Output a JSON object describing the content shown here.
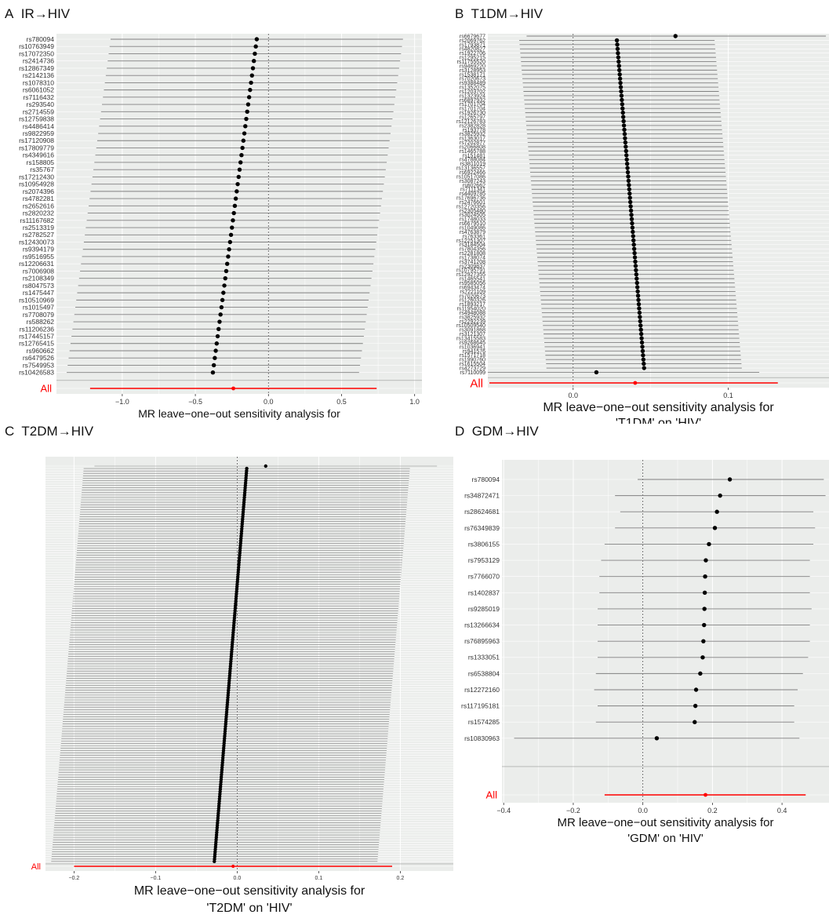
{
  "colors": {
    "panel_bg": "#ebedeb",
    "grid": "#ffffff",
    "ci": "#808080",
    "point": "#000000",
    "overall": "#ff0000",
    "text": "#333333"
  },
  "chart_data": [
    {
      "id": "A",
      "type": "forest",
      "label_letter": "A",
      "title": "IR→HIV",
      "xlabel_line1": "MR leave−one−out sensitivity analysis for",
      "xlabel_line2": "'IR' on 'HIV'",
      "xlim": [
        -1.45,
        1.05
      ],
      "xticks": [
        -1.0,
        -0.5,
        0.0,
        0.5,
        1.0
      ],
      "xtick_labels": [
        "−1.0",
        "−0.5",
        "0.0",
        "0.5",
        "1.0"
      ],
      "snps": [
        "rs780094",
        "rs10763949",
        "rs17072350",
        "rs2414736",
        "rs12867349",
        "rs2142136",
        "rs1078310",
        "rs6061052",
        "rs7116432",
        "rs293540",
        "rs2714559",
        "rs12759838",
        "rs4486414",
        "rs9822959",
        "rs17120908",
        "rs17809779",
        "rs4349616",
        "rs158805",
        "rs35767",
        "rs17212430",
        "rs10954928",
        "rs2074396",
        "rs4782281",
        "rs2652616",
        "rs2820232",
        "rs11167682",
        "rs2513319",
        "rs2782527",
        "rs12430073",
        "rs9394179",
        "rs9516955",
        "rs12206631",
        "rs7006908",
        "rs2108349",
        "rs8047573",
        "rs1475447",
        "rs10510969",
        "rs1015497",
        "rs7708079",
        "rs588262",
        "rs11206236",
        "rs17445157",
        "rs12765415",
        "rs960662",
        "rs6479526",
        "rs7549953",
        "rs10426583"
      ],
      "estimates": {
        "start": -0.08,
        "end": -0.38
      },
      "ci_half": 1.0,
      "overall": {
        "label": "All",
        "estimate": -0.24,
        "lower": -1.22,
        "upper": 0.74
      }
    },
    {
      "id": "B",
      "type": "forest",
      "label_letter": "B",
      "title": "T1DM→HIV",
      "xlabel_line1": "MR leave−one−out sensitivity analysis for",
      "xlabel_line2": "'T1DM' on 'HIV'",
      "xlim": [
        -0.055,
        0.165
      ],
      "xticks": [
        0.0,
        0.1
      ],
      "xtick_labels": [
        "0.0",
        "0.1"
      ],
      "snps": [
        "rs6679677",
        "rs2069762",
        "rs1793871",
        "rs4820827",
        "rs1922706",
        "rs1295215",
        "rs11755520",
        "rs9469220",
        "rs3128953",
        "rs1538171",
        "rs7020673",
        "rs9388489",
        "rs1352075",
        "rs1203702",
        "rs1323924",
        "rs6897932",
        "rs1701704",
        "rs1701704",
        "rs1926730",
        "rs1265797",
        "rs12126783",
        "rs2382828",
        "rs193778",
        "rs3825932",
        "rs1363017",
        "rs7202877",
        "rs2066808",
        "rs1465788",
        "rs151481",
        "rs4788084",
        "rs3811019",
        "rs13136557",
        "rs6922466",
        "rs10517086",
        "rs3087243",
        "rs602662",
        "rs7111341",
        "rs4409785",
        "rs17696736",
        "rs2476601",
        "rs12720356",
        "rs2305480",
        "rs3024505",
        "rs1748033",
        "rs6679510",
        "rs1049086",
        "rs4763879",
        "rs763361",
        "rs12251307",
        "rs3184504",
        "rs7804356",
        "rs2281808",
        "rs1738074",
        "rs3741208",
        "rs2309837",
        "rs10795791",
        "rs12927355",
        "rs1465541",
        "rs9585056",
        "rs6943474",
        "rs7221109",
        "rs7020673",
        "rs1260326",
        "rs1893217",
        "rs11954020",
        "rs4948088",
        "rs3825932",
        "rs2292239",
        "rs10509540",
        "rs3091868",
        "rs3121307",
        "rs13415583",
        "rs9268645",
        "rs1036941",
        "rs941576",
        "rs1571718",
        "rs1990760",
        "rs1615504",
        "rs4273729",
        "rs7110099"
      ],
      "estimates": {
        "start": 0.028,
        "end": 0.046
      },
      "ci_half": 0.063,
      "first": {
        "estimate": 0.066,
        "lower": -0.03,
        "upper": 0.163
      },
      "last": {
        "estimate": 0.015,
        "lower": -0.08,
        "upper": 0.12
      },
      "overall": {
        "label": "All",
        "estimate": 0.04,
        "lower": -0.054,
        "upper": 0.132
      }
    },
    {
      "id": "C",
      "type": "forest",
      "label_letter": "C",
      "title": "T2DM→HIV",
      "xlabel_line1": "MR leave−one−out sensitivity analysis for",
      "xlabel_line2": "'T2DM' on 'HIV'",
      "xlim": [
        -0.235,
        0.265
      ],
      "xticks": [
        -0.2,
        -0.1,
        0.0,
        0.1,
        0.2
      ],
      "xtick_labels": [
        "−0.2",
        "−0.1",
        "0.0",
        "0.1",
        "0.2"
      ],
      "snp_count": 165,
      "estimates": {
        "start": 0.012,
        "end": -0.028
      },
      "ci_half": 0.2,
      "first": {
        "estimate": 0.035,
        "lower": -0.175,
        "upper": 0.245
      },
      "overall": {
        "label": "All",
        "estimate": -0.005,
        "lower": -0.2,
        "upper": 0.19
      }
    },
    {
      "id": "D",
      "type": "forest",
      "label_letter": "D",
      "title": "GDM→HIV",
      "xlabel_line1": "MR leave−one−out sensitivity analysis for",
      "xlabel_line2": "'GDM' on 'HIV'",
      "xlim": [
        -0.405,
        0.535
      ],
      "xticks": [
        -0.4,
        -0.2,
        0.0,
        0.2,
        0.4
      ],
      "xtick_labels": [
        "−0.4",
        "−0.2",
        "0.0",
        "0.2",
        "0.4"
      ],
      "snps": [
        "rs780094",
        "rs34872471",
        "rs28624681",
        "rs76349839",
        "rs3806155",
        "rs7953129",
        "rs7766070",
        "rs1402837",
        "rs9285019",
        "rs13266634",
        "rs76895963",
        "rs1333051",
        "rs6538804",
        "rs12272160",
        "rs117195181",
        "rs1574285",
        "rs10830963"
      ],
      "rows": [
        {
          "estimate": 0.25,
          "lower": -0.015,
          "upper": 0.52
        },
        {
          "estimate": 0.222,
          "lower": -0.08,
          "upper": 0.525
        },
        {
          "estimate": 0.213,
          "lower": -0.065,
          "upper": 0.49
        },
        {
          "estimate": 0.207,
          "lower": -0.08,
          "upper": 0.495
        },
        {
          "estimate": 0.19,
          "lower": -0.11,
          "upper": 0.49
        },
        {
          "estimate": 0.181,
          "lower": -0.12,
          "upper": 0.48
        },
        {
          "estimate": 0.179,
          "lower": -0.125,
          "upper": 0.48
        },
        {
          "estimate": 0.178,
          "lower": -0.125,
          "upper": 0.48
        },
        {
          "estimate": 0.177,
          "lower": -0.13,
          "upper": 0.485
        },
        {
          "estimate": 0.176,
          "lower": -0.13,
          "upper": 0.48
        },
        {
          "estimate": 0.174,
          "lower": -0.13,
          "upper": 0.48
        },
        {
          "estimate": 0.172,
          "lower": -0.13,
          "upper": 0.475
        },
        {
          "estimate": 0.165,
          "lower": -0.135,
          "upper": 0.46
        },
        {
          "estimate": 0.153,
          "lower": -0.14,
          "upper": 0.445
        },
        {
          "estimate": 0.151,
          "lower": -0.13,
          "upper": 0.435
        },
        {
          "estimate": 0.149,
          "lower": -0.135,
          "upper": 0.435
        },
        {
          "estimate": 0.04,
          "lower": -0.37,
          "upper": 0.45
        }
      ],
      "overall": {
        "label": "All",
        "estimate": 0.18,
        "lower": -0.11,
        "upper": 0.468
      }
    }
  ]
}
